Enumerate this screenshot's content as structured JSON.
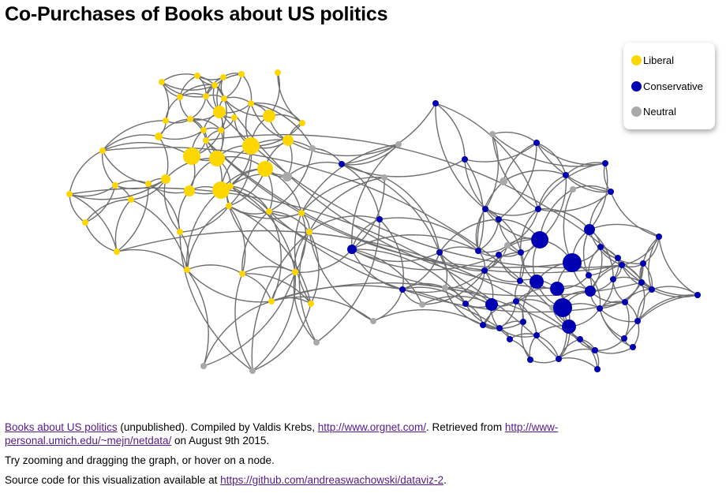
{
  "title": "Co-Purchases of Books about US politics",
  "legend": [
    {
      "key": "liberal",
      "label": "Liberal",
      "color": "#ffd700"
    },
    {
      "key": "conservative",
      "label": "Conservative",
      "color": "#0000b3"
    },
    {
      "key": "neutral",
      "label": "Neutral",
      "color": "#a9a9a9"
    }
  ],
  "colors": {
    "liberal": "#ffd700",
    "conservative": "#0000b3",
    "neutral": "#a9a9a9",
    "edge": "#6e6e6e",
    "link": "#551a8b"
  },
  "footer": {
    "source_link": "Books about US politics",
    "source_text_1": " (unpublished). Compiled by Valdis Krebs, ",
    "krebs_link": "http://www.orgnet.com/",
    "source_text_2": ". Retrieved from ",
    "newman_link": "http://www-personal.umich.edu/~mejn/netdata/",
    "source_text_3": " on August 9th 2015.",
    "hint": "Try zooming and dragging the graph, or hover on a node.",
    "code_text": "Source code for this visualization available at ",
    "code_link": "https://github.com/andreaswachowski/dataviz-2",
    "code_end": "."
  }
}
